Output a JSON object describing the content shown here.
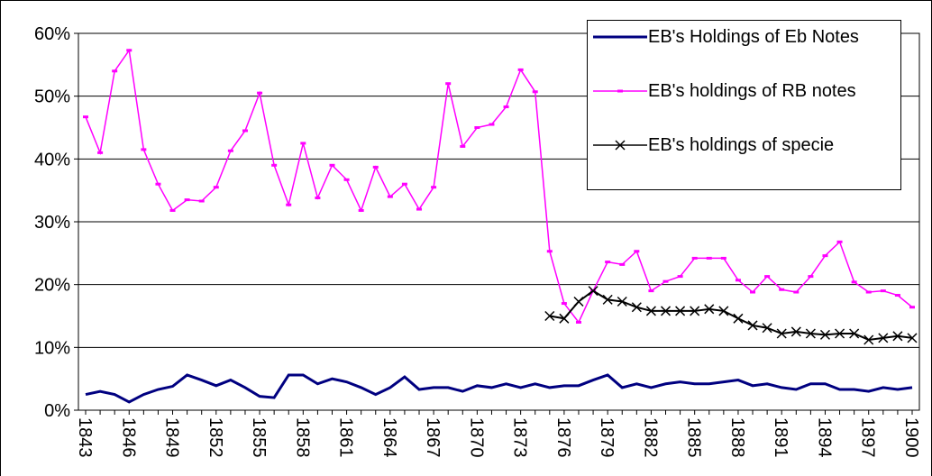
{
  "chart_data": {
    "type": "line",
    "categories": [
      "1843",
      null,
      null,
      "1846",
      null,
      null,
      "1849",
      null,
      null,
      "1852",
      null,
      null,
      "1855",
      null,
      null,
      "1858",
      null,
      null,
      "1861",
      null,
      null,
      "1864",
      null,
      null,
      "1867",
      null,
      null,
      "1870",
      null,
      null,
      "1873",
      null,
      null,
      "1876",
      null,
      null,
      "1879",
      null,
      null,
      "1882",
      null,
      null,
      "1885",
      null,
      null,
      "1888",
      null,
      null,
      "1891",
      null,
      null,
      "1894",
      null,
      null,
      "1897",
      null,
      null,
      "1900"
    ],
    "series": [
      {
        "name": "EB's Holdings of Eb Notes",
        "color": "#000080",
        "marker": "none",
        "values": [
          2.5,
          3.0,
          2.5,
          1.3,
          2.5,
          3.3,
          3.8,
          5.6,
          4.8,
          3.9,
          4.8,
          3.6,
          2.2,
          2.0,
          5.6,
          5.6,
          4.2,
          5.0,
          4.5,
          3.6,
          2.5,
          3.6,
          5.3,
          3.3,
          3.6,
          3.6,
          3.0,
          3.9,
          3.6,
          4.2,
          3.6,
          4.2,
          3.6,
          3.9,
          3.9,
          4.8,
          5.6,
          3.6,
          4.2,
          3.6,
          4.2,
          4.5,
          4.2,
          4.2,
          4.5,
          4.8,
          3.9,
          4.2,
          3.6,
          3.3,
          4.2,
          4.2,
          3.3,
          3.3,
          3.0,
          3.6,
          3.3,
          3.6
        ]
      },
      {
        "name": "EB's holdings of RB notes",
        "color": "#ff00ff",
        "marker": "dash",
        "values": [
          46.7,
          41,
          54,
          57.3,
          41.5,
          36,
          31.8,
          33.5,
          33.3,
          35.5,
          41.3,
          44.5,
          50.5,
          39,
          32.7,
          42.5,
          33.8,
          39,
          36.7,
          31.8,
          38.7,
          34,
          36,
          32,
          35.5,
          52,
          42,
          45,
          45.5,
          48.3,
          54.2,
          50.7,
          25.3,
          17,
          14,
          19,
          23.6,
          23.2,
          25.3,
          19,
          20.5,
          21.3,
          24.2,
          24.2,
          24.2,
          20.7,
          18.8,
          21.3,
          19.2,
          18.8,
          21.3,
          24.6,
          26.8,
          20.4,
          18.8,
          19,
          18.3,
          16.4
        ]
      },
      {
        "name": "EB's holdings of specie",
        "color": "#000000",
        "marker": "x",
        "values": [
          null,
          null,
          null,
          null,
          null,
          null,
          null,
          null,
          null,
          null,
          null,
          null,
          null,
          null,
          null,
          null,
          null,
          null,
          null,
          null,
          null,
          null,
          null,
          null,
          null,
          null,
          null,
          null,
          null,
          null,
          null,
          null,
          15,
          14.6,
          17.3,
          19,
          17.6,
          17.3,
          16.4,
          15.8,
          15.8,
          15.8,
          15.8,
          16.1,
          15.8,
          14.6,
          13.5,
          13.1,
          12.2,
          12.5,
          12.2,
          12,
          12.2,
          12.2,
          11.2,
          11.5,
          11.8,
          11.5
        ]
      }
    ],
    "ylim": [
      0,
      60
    ],
    "yticks": [
      {
        "value": 0,
        "label": "0%"
      },
      {
        "value": 10,
        "label": "10%"
      },
      {
        "value": 20,
        "label": "20%"
      },
      {
        "value": 30,
        "label": "30%"
      },
      {
        "value": 40,
        "label": "40%"
      },
      {
        "value": 50,
        "label": "50%"
      },
      {
        "value": 60,
        "label": "60%"
      }
    ],
    "grid": true,
    "legend": "upper right"
  }
}
